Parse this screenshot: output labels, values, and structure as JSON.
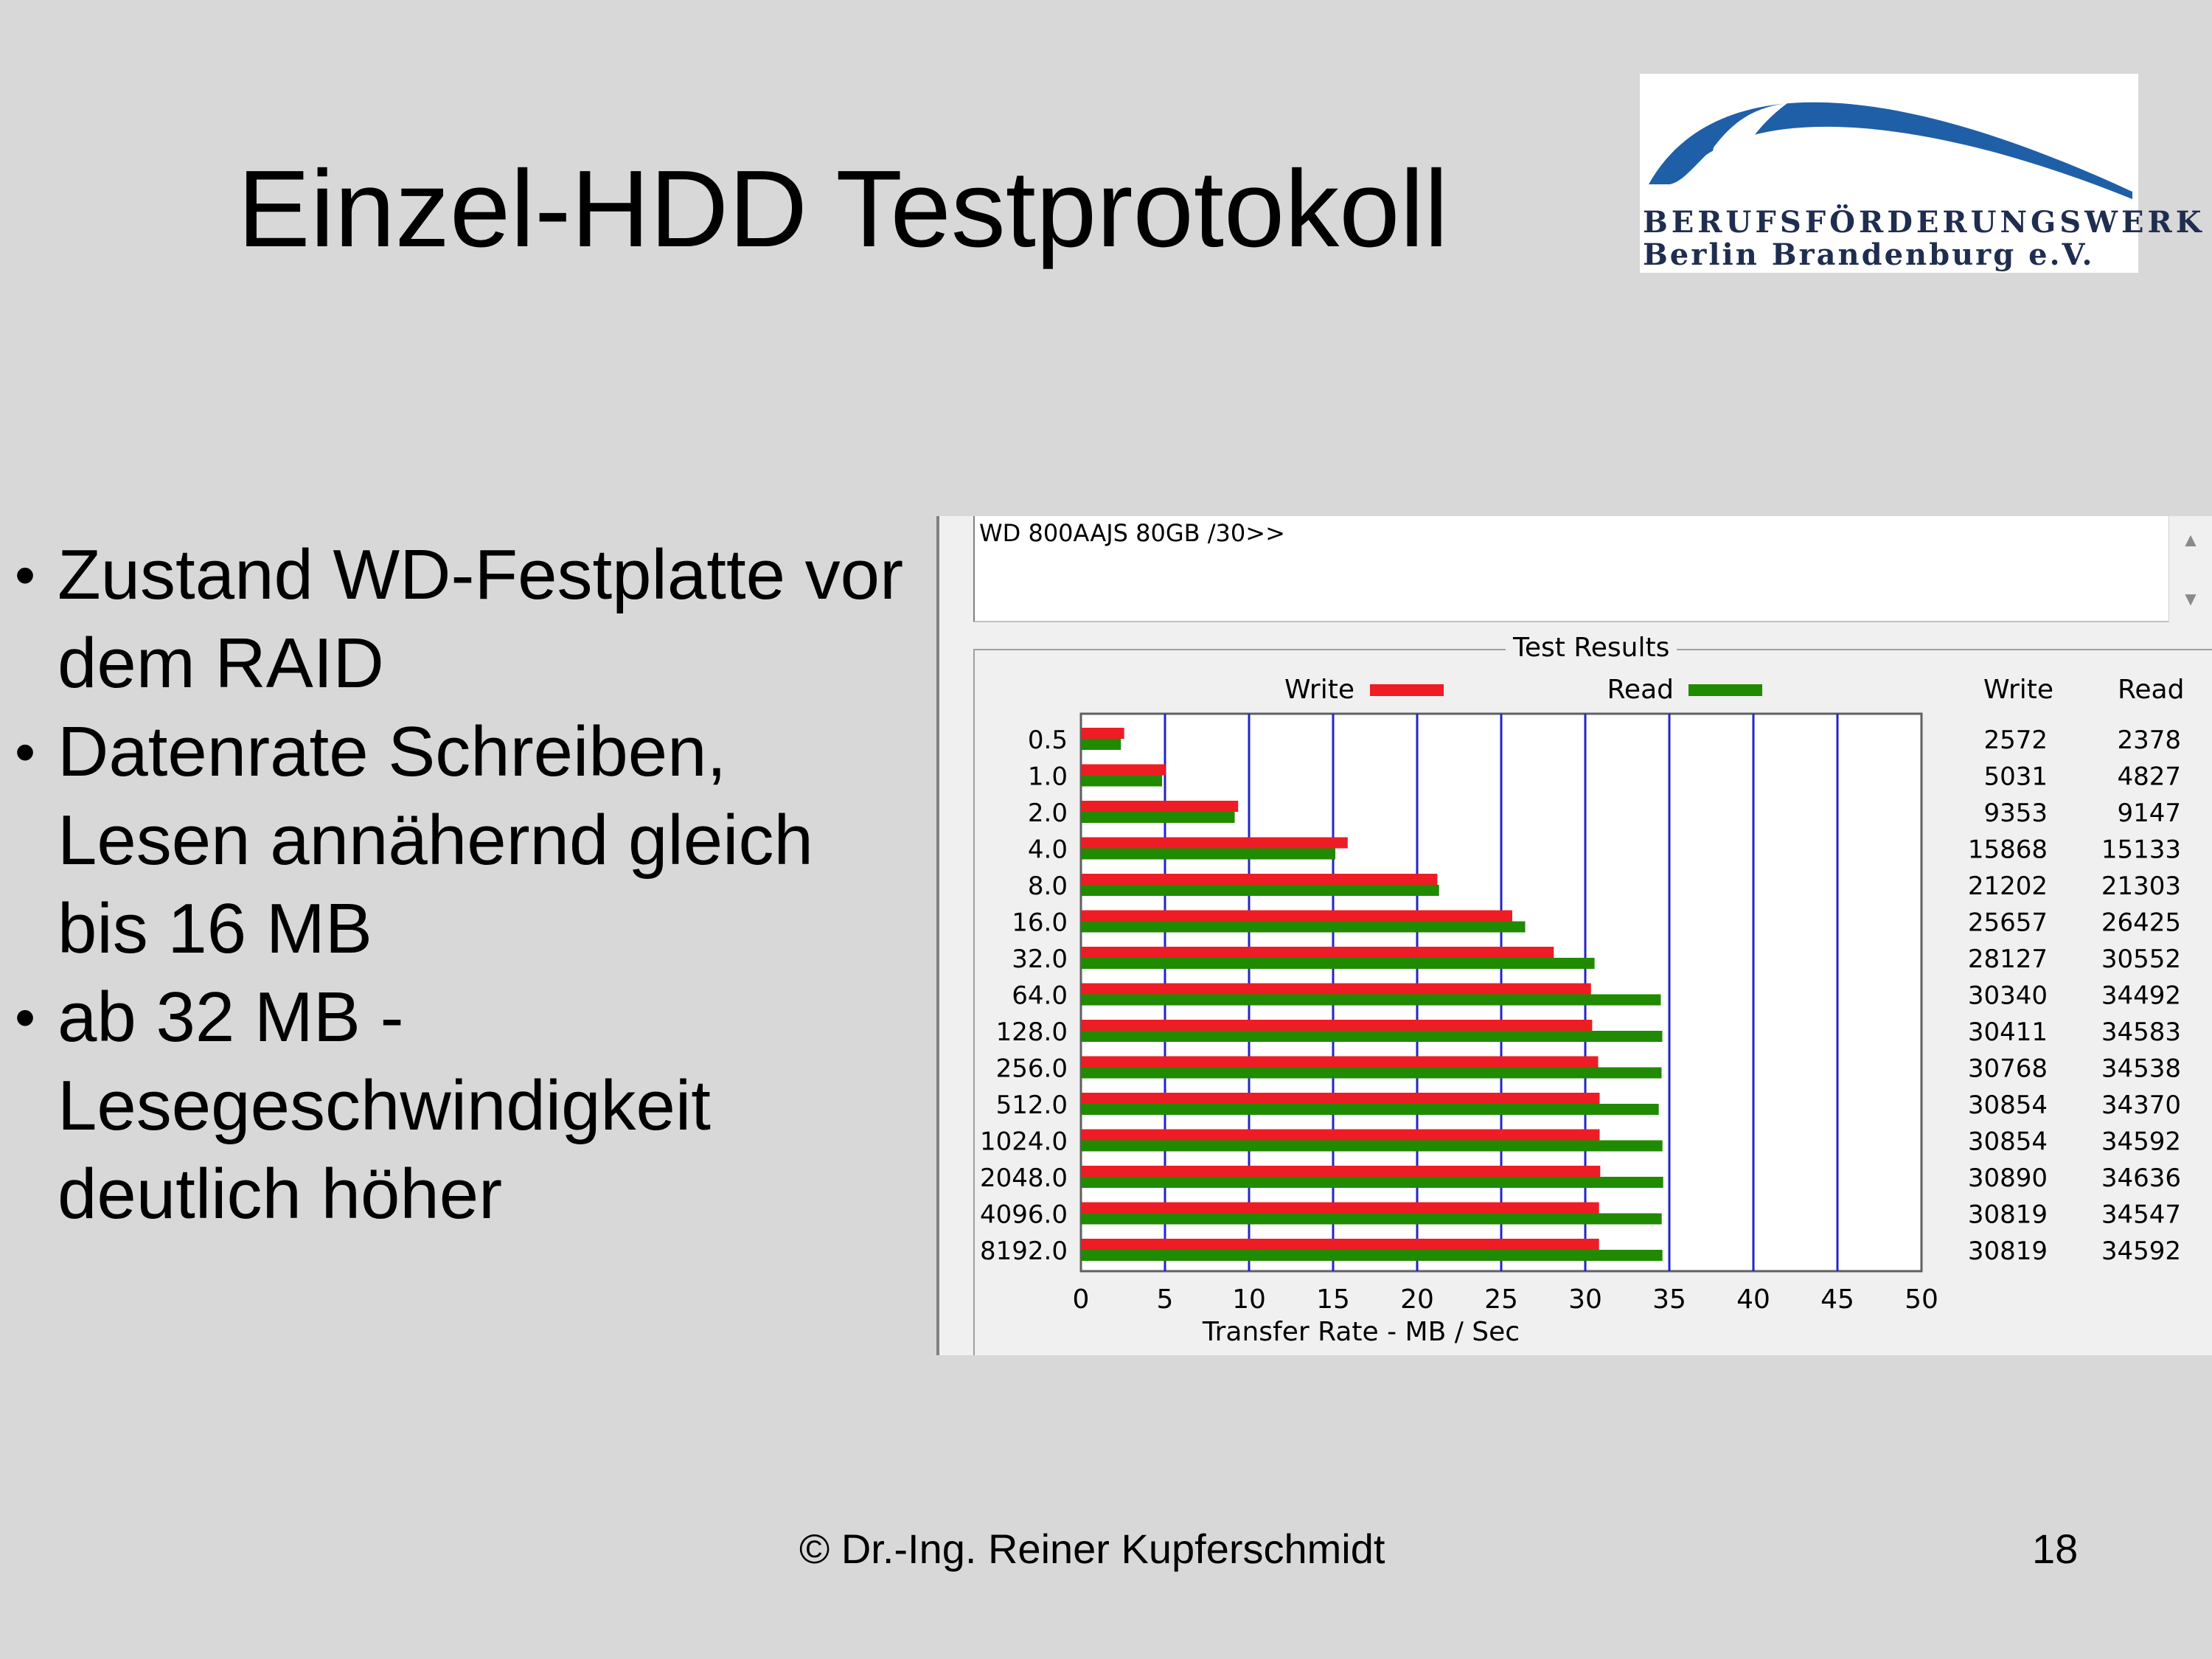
{
  "slide": {
    "title": "Einzel-HDD Testprotokoll",
    "bullets": [
      "Zustand WD-Festplatte vor dem RAID",
      "Datenrate Schreiben, Lesen annähernd gleich bis 16 MB",
      "ab 32 MB - Lesegeschwindigkeit deutlich höher"
    ],
    "footer": "© Dr.-Ing. Reiner Kupferschmidt",
    "page_number": "18"
  },
  "logo": {
    "line1": "BERUFSFÖRDERUNGSWERK",
    "line2": "Berlin Brandenburg e.V.",
    "color": "#1f5fa8"
  },
  "window": {
    "drive_text": "WD 800AAJS 80GB /30>>",
    "scroll_up_icon": "▲",
    "scroll_down_icon": "▼",
    "group_title": "Test Results",
    "col_write_header": "Write",
    "col_read_header": "Read"
  },
  "chart_data": {
    "type": "bar",
    "orientation": "horizontal",
    "xlabel": "Transfer Rate - MB / Sec",
    "xlim": [
      0,
      50
    ],
    "xticks": [
      "0",
      "5",
      "10",
      "15",
      "20",
      "25",
      "30",
      "35",
      "40",
      "45",
      "50"
    ],
    "categories": [
      "0.5",
      "1.0",
      "2.0",
      "4.0",
      "8.0",
      "16.0",
      "32.0",
      "64.0",
      "128.0",
      "256.0",
      "512.0",
      "1024.0",
      "2048.0",
      "4096.0",
      "8192.0"
    ],
    "legend": [
      {
        "name": "Write",
        "color": "#ee1c25"
      },
      {
        "name": "Read",
        "color": "#208a00"
      }
    ],
    "series": [
      {
        "name": "Write",
        "color": "#ee1c25",
        "values": [
          2572,
          5031,
          9353,
          15868,
          21202,
          25657,
          28127,
          30340,
          30411,
          30768,
          30854,
          30854,
          30890,
          30819,
          30819
        ]
      },
      {
        "name": "Read",
        "color": "#208a00",
        "values": [
          2378,
          4827,
          9147,
          15133,
          21303,
          26425,
          30552,
          34492,
          34583,
          34538,
          34370,
          34592,
          34636,
          34547,
          34592
        ]
      }
    ],
    "grid": "vertical",
    "grid_color": "#2424c8"
  }
}
